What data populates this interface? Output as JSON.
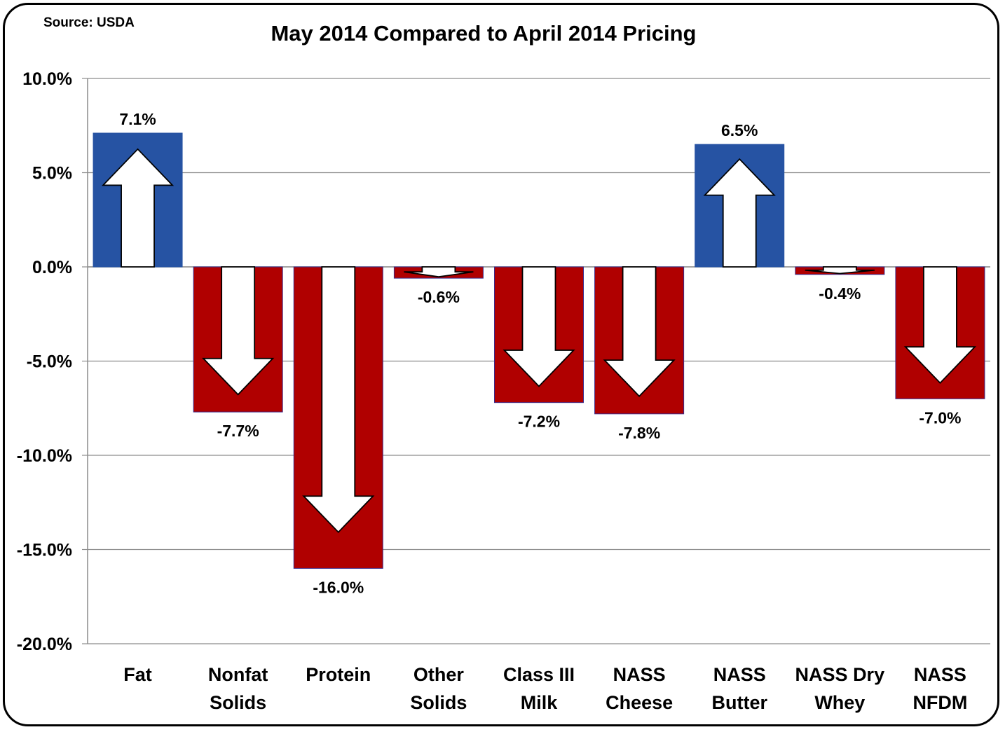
{
  "source": "Source: USDA",
  "chart_data": {
    "type": "bar",
    "title": "May 2014 Compared to April 2014 Pricing",
    "categories": [
      [
        "Fat"
      ],
      [
        "Nonfat",
        "Solids"
      ],
      [
        "Protein"
      ],
      [
        "Other",
        "Solids"
      ],
      [
        "Class III",
        "Milk"
      ],
      [
        "NASS",
        "Cheese"
      ],
      [
        "NASS",
        "Butter"
      ],
      [
        "NASS Dry",
        "Whey"
      ],
      [
        "NASS",
        "NFDM"
      ]
    ],
    "values": [
      7.1,
      -7.7,
      -16.0,
      -0.6,
      -7.2,
      -7.8,
      6.5,
      -0.4,
      -7.0
    ],
    "data_labels": [
      "7.1%",
      "-7.7%",
      "-16.0%",
      "-0.6%",
      "-7.2%",
      "-7.8%",
      "6.5%",
      "-0.4%",
      "-7.0%"
    ],
    "ylim": [
      -20,
      10
    ],
    "yticks": [
      10,
      5,
      0,
      -5,
      -10,
      -15,
      -20
    ],
    "ytick_labels": [
      "10.0%",
      "5.0%",
      "0.0%",
      "-5.0%",
      "-10.0%",
      "-15.0%",
      "-20.0%"
    ],
    "xlabel": "",
    "ylabel": "",
    "grid": true,
    "colors": {
      "positive": "#2653a3",
      "negative": "#b00000",
      "arrow": "#ffffff"
    }
  }
}
